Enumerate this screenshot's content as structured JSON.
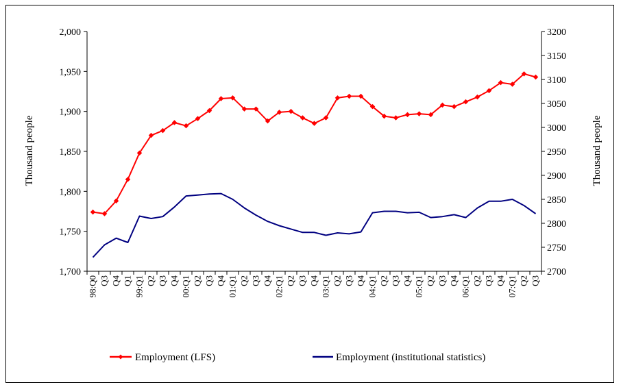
{
  "colors": {
    "lfs": "#ff0000",
    "institutional": "#000080"
  },
  "chart_data": {
    "type": "line",
    "categories": [
      "98:Q0",
      "Q3",
      "Q4",
      "Q1",
      "99:Q1",
      "Q2",
      "Q3",
      "Q4",
      "00:Q1",
      "Q2",
      "Q3",
      "Q4",
      "01:Q1",
      "Q2",
      "Q3",
      "Q4",
      "02:Q1",
      "Q2",
      "Q3",
      "Q4",
      "03:Q1",
      "Q2",
      "Q3",
      "Q4",
      "04:Q1",
      "Q2",
      "Q3",
      "Q4",
      "05:Q1",
      "Q2",
      "Q3",
      "Q4",
      "06:Q1",
      "Q2",
      "Q3",
      "Q4",
      "07:Q1",
      "Q2",
      "Q3"
    ],
    "x_tick_labels": [
      "98:Q0",
      "Q3",
      "Q4",
      "Q1",
      "99:Q1",
      "Q2",
      "Q3",
      "Q4",
      "00:Q1",
      "Q2",
      "Q3",
      "Q4",
      "01:Q1",
      "Q2",
      "Q3",
      "Q4",
      "02:Q1",
      "Q2",
      "Q3",
      "Q4",
      "03:Q1",
      "Q2",
      "Q3",
      "Q4",
      "04:Q1",
      "Q2",
      "Q3",
      "Q4",
      "05:Q1",
      "Q2",
      "Q3",
      "Q4",
      "06:Q1",
      "Q2",
      "Q3",
      "Q4",
      "07:Q1",
      "Q2",
      "Q3"
    ],
    "left_axis": {
      "label": "Thousand people",
      "range": [
        1700,
        2000
      ],
      "tick_labels": [
        "1,700",
        "1,750",
        "1,800",
        "1,850",
        "1,900",
        "1,950",
        "2,000"
      ],
      "tick_values": [
        1700,
        1750,
        1800,
        1850,
        1900,
        1950,
        2000
      ]
    },
    "right_axis": {
      "label": "Thousand people",
      "range": [
        2700,
        3200
      ],
      "tick_labels": [
        "2700",
        "2750",
        "2800",
        "2850",
        "2900",
        "2950",
        "3000",
        "3050",
        "3100",
        "3150",
        "3200"
      ],
      "tick_values": [
        2700,
        2750,
        2800,
        2850,
        2900,
        2950,
        3000,
        3050,
        3100,
        3150,
        3200
      ]
    },
    "grid": false,
    "legend_position": "bottom",
    "series": [
      {
        "name": "Employment (LFS)",
        "axis": "left",
        "marker": "diamond",
        "values": [
          1774,
          1772,
          1788,
          1815,
          1848,
          1870,
          1876,
          1886,
          1882,
          1891,
          1901,
          1916,
          1917,
          1903,
          1903,
          1888,
          1899,
          1900,
          1892,
          1885,
          1892,
          1917,
          1919,
          1919,
          1906,
          1894,
          1892,
          1896,
          1897,
          1896,
          1908,
          1906,
          1912,
          1918,
          1926,
          1936,
          1934,
          1947,
          1943
        ]
      },
      {
        "name": "Employment (institutional statistics)",
        "axis": "right",
        "marker": "none",
        "values": [
          2729,
          2755,
          2769,
          2760,
          2815,
          2810,
          2814,
          2834,
          2857,
          2859,
          2861,
          2862,
          2850,
          2832,
          2817,
          2804,
          2795,
          2788,
          2781,
          2781,
          2775,
          2780,
          2778,
          2782,
          2822,
          2825,
          2825,
          2822,
          2823,
          2812,
          2814,
          2818,
          2812,
          2832,
          2846,
          2846,
          2850,
          2837,
          2820
        ]
      }
    ]
  }
}
